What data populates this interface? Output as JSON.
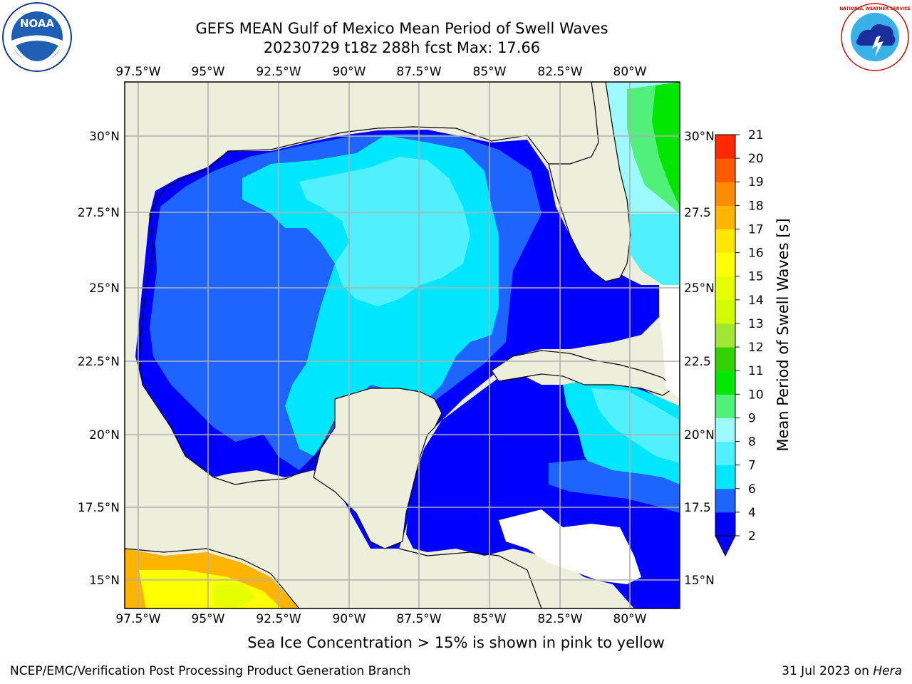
{
  "header": {
    "title_line1": "GEFS MEAN Gulf of Mexico Mean Period of Swell Waves",
    "title_line2": "20230729 t18z 288h fcst   Max: 17.66"
  },
  "logos": {
    "left_text": "NOAA",
    "right_text": "NATIONAL WEATHER SERVICE"
  },
  "axes": {
    "lon_ticks": [
      "97.5°W",
      "95°W",
      "92.5°W",
      "90°W",
      "87.5°W",
      "85°W",
      "82.5°W",
      "80°W"
    ],
    "lat_ticks_left": [
      "30°N",
      "27.5°N",
      "25°N",
      "22.5°N",
      "20°N",
      "17.5°N",
      "15°N"
    ],
    "lat_ticks_right": [
      "30°N",
      "27.5",
      "25°N",
      "22.5",
      "20°N",
      "17.5",
      "15°N"
    ]
  },
  "colorbar": {
    "label": "Mean Period of Swell Waves [s]",
    "ticks": [
      "2",
      "4",
      "6",
      "7",
      "8",
      "9",
      "10",
      "11",
      "12",
      "13",
      "14",
      "15",
      "16",
      "17",
      "18",
      "19",
      "20",
      "21"
    ],
    "colors": [
      "#0000ff",
      "#1e64ff",
      "#00e6ff",
      "#50f0ff",
      "#9cfaff",
      "#50f07a",
      "#00e600",
      "#32d200",
      "#a0e632",
      "#d2fa00",
      "#e6ff00",
      "#ffff00",
      "#ffe600",
      "#ffb400",
      "#ff8c00",
      "#ff5a00",
      "#ff2800",
      "#ff0000"
    ]
  },
  "caption": "Sea Ice Concentration > 15% is shown in pink to yellow",
  "footer": {
    "left": "NCEP/EMC/Verification Post Processing Product Generation Branch",
    "right_date": "31 Jul 2023 on ",
    "right_host": "Hera"
  },
  "colors": {
    "land": "#eeeedc",
    "deep_blue": "#0000ff",
    "mid_blue": "#1e64ff",
    "cyan": "#00e6ff",
    "light_cyan": "#50f0ff",
    "green": "#00e600",
    "orange": "#ffb400",
    "yellow": "#ffff00",
    "grid": "#b0b0b0"
  }
}
